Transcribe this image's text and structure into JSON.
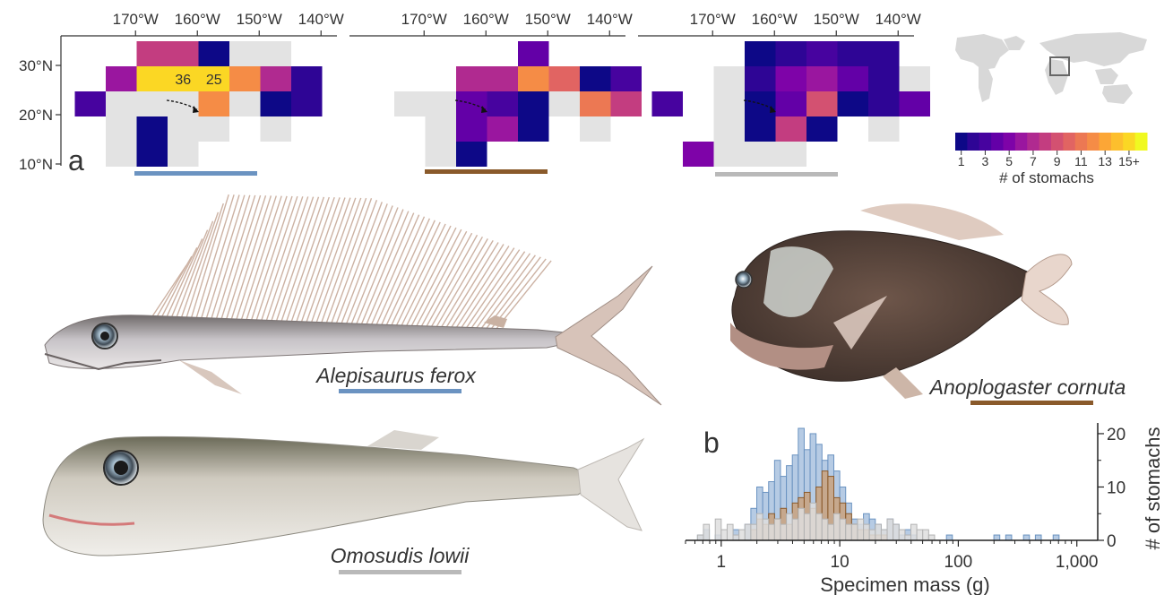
{
  "panel_a": {
    "label": "a",
    "lon_ticks": [
      "170°W",
      "160°W",
      "150°W",
      "140°W"
    ],
    "lat_ticks": [
      "30°N",
      "20°N",
      "10°N"
    ],
    "maps": [
      {
        "species": "Alepisaurus ferox",
        "bar_color": "#6b93c1",
        "cells": [
          [
            0,
            1,
            0,
            8,
            0
          ],
          [
            0,
            2,
            0,
            8,
            0
          ],
          [
            0,
            3,
            0,
            1,
            0
          ],
          [
            0,
            4,
            0,
            0,
            0
          ],
          [
            0,
            5,
            0,
            0,
            0
          ],
          [
            1,
            0,
            0,
            6,
            0
          ],
          [
            1,
            1,
            0,
            15,
            0
          ],
          [
            1,
            2,
            0,
            15,
            36
          ],
          [
            1,
            3,
            0,
            15,
            25
          ],
          [
            1,
            4,
            0,
            12,
            0
          ],
          [
            1,
            5,
            0,
            7,
            0
          ],
          [
            1,
            6,
            0,
            2,
            0
          ],
          [
            2,
            -1,
            0,
            3,
            0
          ],
          [
            2,
            0,
            0,
            0,
            0
          ],
          [
            2,
            1,
            0,
            0,
            0
          ],
          [
            2,
            2,
            0,
            0,
            0
          ],
          [
            2,
            3,
            0,
            12,
            0
          ],
          [
            2,
            4,
            0,
            0,
            0
          ],
          [
            2,
            5,
            0,
            1,
            0
          ],
          [
            2,
            6,
            0,
            2,
            0
          ],
          [
            3,
            0,
            0,
            0,
            0
          ],
          [
            3,
            1,
            0,
            1,
            0
          ],
          [
            3,
            2,
            0,
            0,
            0
          ],
          [
            3,
            3,
            0,
            0,
            0
          ],
          [
            3,
            5,
            0,
            0,
            0
          ],
          [
            4,
            0,
            0,
            0,
            0
          ],
          [
            4,
            1,
            0,
            1,
            0
          ],
          [
            4,
            2,
            0,
            0,
            0
          ]
        ]
      },
      {
        "species": "Anoplogaster cornuta",
        "bar_color": "#8a5a2b",
        "cells": [
          [
            0,
            4,
            0,
            4,
            0
          ],
          [
            1,
            2,
            0,
            7,
            0
          ],
          [
            1,
            3,
            0,
            7,
            0
          ],
          [
            1,
            4,
            0,
            12,
            0
          ],
          [
            1,
            5,
            0,
            10,
            0
          ],
          [
            1,
            6,
            0,
            1,
            0
          ],
          [
            1,
            7,
            0,
            3,
            0
          ],
          [
            2,
            0,
            0,
            0,
            0
          ],
          [
            2,
            1,
            0,
            0,
            0
          ],
          [
            2,
            2,
            0,
            4,
            0
          ],
          [
            2,
            3,
            0,
            3,
            0
          ],
          [
            2,
            4,
            0,
            1,
            0
          ],
          [
            2,
            5,
            0,
            0,
            0
          ],
          [
            2,
            6,
            0,
            11,
            0
          ],
          [
            2,
            7,
            0,
            8,
            0
          ],
          [
            3,
            1,
            0,
            0,
            0
          ],
          [
            3,
            2,
            0,
            4,
            0
          ],
          [
            3,
            3,
            0,
            6,
            0
          ],
          [
            3,
            4,
            0,
            1,
            0
          ],
          [
            3,
            6,
            0,
            0,
            0
          ],
          [
            4,
            1,
            0,
            0,
            0
          ],
          [
            4,
            2,
            0,
            1,
            0
          ]
        ]
      },
      {
        "species": "Omosudis lowii",
        "bar_color": "#b9b9b9",
        "cells": [
          [
            0,
            2,
            0,
            1,
            0
          ],
          [
            0,
            3,
            0,
            2,
            0
          ],
          [
            0,
            4,
            0,
            3,
            0
          ],
          [
            0,
            5,
            0,
            2,
            0
          ],
          [
            0,
            6,
            0,
            2,
            0
          ],
          [
            1,
            1,
            0,
            0,
            0
          ],
          [
            1,
            2,
            0,
            2,
            0
          ],
          [
            1,
            3,
            0,
            5,
            0
          ],
          [
            1,
            4,
            0,
            6,
            0
          ],
          [
            1,
            5,
            0,
            4,
            0
          ],
          [
            1,
            6,
            0,
            2,
            0
          ],
          [
            1,
            7,
            0,
            0,
            0
          ],
          [
            2,
            -1,
            0,
            3,
            0
          ],
          [
            2,
            1,
            0,
            0,
            0
          ],
          [
            2,
            2,
            0,
            1,
            0
          ],
          [
            2,
            3,
            0,
            4,
            0
          ],
          [
            2,
            4,
            0,
            9,
            0
          ],
          [
            2,
            5,
            0,
            1,
            0
          ],
          [
            2,
            6,
            0,
            2,
            0
          ],
          [
            2,
            7,
            0,
            4,
            0
          ],
          [
            3,
            1,
            0,
            0,
            0
          ],
          [
            3,
            2,
            0,
            1,
            0
          ],
          [
            3,
            3,
            0,
            8,
            0
          ],
          [
            3,
            4,
            0,
            1,
            0
          ],
          [
            3,
            6,
            0,
            0,
            0
          ],
          [
            4,
            0,
            0,
            5,
            0
          ],
          [
            4,
            1,
            0,
            0,
            0
          ],
          [
            4,
            2,
            0,
            0,
            0
          ],
          [
            4,
            3,
            0,
            0,
            0
          ]
        ]
      }
    ],
    "colorbar": {
      "tick_labels": [
        "1",
        "3",
        "5",
        "7",
        "9",
        "11",
        "13",
        "15+"
      ],
      "label": "# of stomachs",
      "colors": [
        "#0d0887",
        "#2e0595",
        "#47039f",
        "#6300a7",
        "#7e03a8",
        "#9a169f",
        "#b02a90",
        "#c33d80",
        "#d35171",
        "#e16462",
        "#ec7853",
        "#f58c46",
        "#fca636",
        "#fdbf2d",
        "#fbd724",
        "#f0f921"
      ]
    }
  },
  "species_labels": {
    "alepisaurus": "Alepisaurus ferox",
    "anoplogaster": "Anoplogaster cornuta",
    "omosudis": "Omosudis lowii"
  },
  "chart_data": [
    {
      "type": "bar",
      "panel": "b",
      "title": "",
      "xlabel": "Specimen mass (g)",
      "ylabel": "# of stomachs",
      "x_scale": "log",
      "xlim": [
        0.5,
        1500
      ],
      "ylim": [
        0,
        21
      ],
      "x_tick_labels": [
        "1",
        "10",
        "100",
        "1,000"
      ],
      "y_tick_labels": [
        "0",
        "10",
        "20"
      ],
      "bin_left_edges_log10": [
        -0.3,
        -0.25,
        -0.2,
        -0.15,
        -0.1,
        -0.05,
        0.0,
        0.05,
        0.1,
        0.15,
        0.2,
        0.25,
        0.3,
        0.35,
        0.4,
        0.45,
        0.5,
        0.55,
        0.6,
        0.65,
        0.7,
        0.75,
        0.8,
        0.85,
        0.9,
        0.95,
        1.0,
        1.05,
        1.1,
        1.15,
        1.2,
        1.25,
        1.3,
        1.35,
        1.4,
        1.45,
        1.5,
        1.55,
        1.6,
        1.65,
        1.7,
        1.75,
        1.8,
        1.85,
        1.9,
        1.95,
        2.0,
        2.05,
        2.1,
        2.15,
        2.2,
        2.25,
        2.3,
        2.35,
        2.4,
        2.45,
        2.5,
        2.55,
        2.6,
        2.65,
        2.7,
        2.75,
        2.8,
        2.85,
        2.9,
        2.95,
        3.0,
        3.05
      ],
      "series": [
        {
          "name": "Alepisaurus ferox",
          "color": "#a9c2df",
          "edge": "#6b93c1",
          "values": [
            0,
            0,
            1,
            2,
            0,
            1,
            0,
            0,
            2,
            0,
            3,
            6,
            10,
            9,
            11,
            15,
            12,
            14,
            16,
            21,
            17,
            20,
            18,
            15,
            16,
            13,
            10,
            7,
            4,
            3,
            5,
            4,
            3,
            2,
            4,
            3,
            1,
            2,
            1,
            0,
            0,
            0,
            0,
            0,
            1,
            0,
            0,
            0,
            0,
            0,
            0,
            0,
            1,
            0,
            1,
            0,
            0,
            1,
            0,
            1,
            0,
            0,
            1,
            0,
            0,
            0,
            0,
            0
          ]
        },
        {
          "name": "Anoplogaster cornuta",
          "color": "#c9a27e",
          "edge": "#8a5a2b",
          "values": [
            0,
            0,
            0,
            0,
            0,
            0,
            0,
            0,
            0,
            0,
            0,
            2,
            4,
            3,
            5,
            4,
            6,
            3,
            7,
            8,
            9,
            6,
            10,
            13,
            12,
            8,
            7,
            5,
            3,
            2,
            2,
            1,
            1,
            1,
            0,
            0,
            0,
            0,
            0,
            0,
            0,
            0,
            0,
            0,
            0,
            0,
            0,
            0,
            0,
            0,
            0,
            0,
            0,
            0,
            0,
            0,
            0,
            0,
            0,
            0,
            0,
            0,
            0,
            0,
            0,
            0,
            0,
            0
          ]
        },
        {
          "name": "Omosudis lowii",
          "color": "#dedede",
          "edge": "#b3b3b3",
          "values": [
            0,
            0,
            1,
            3,
            0,
            4,
            2,
            3,
            1,
            2,
            3,
            3,
            5,
            4,
            3,
            4,
            3,
            5,
            4,
            6,
            5,
            7,
            5,
            4,
            3,
            5,
            4,
            3,
            3,
            4,
            3,
            2,
            3,
            2,
            4,
            3,
            2,
            1,
            3,
            2,
            2,
            1,
            0,
            0,
            0,
            0,
            0,
            0,
            0,
            0,
            0,
            0,
            0,
            0,
            0,
            0,
            0,
            0,
            0,
            0,
            0,
            0,
            0,
            0,
            0,
            0,
            0,
            0
          ]
        }
      ]
    }
  ],
  "panel_b_label": "b"
}
